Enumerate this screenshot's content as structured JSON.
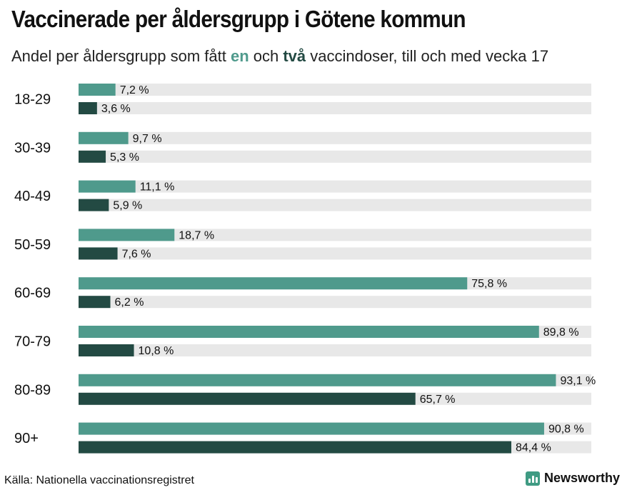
{
  "title": "Vaccinerade per åldersgrupp i Götene kommun",
  "subtitle": {
    "pre": "Andel per åldersgrupp som fått ",
    "one": "en",
    "mid": " och ",
    "two": "två",
    "post": " vaccindoser, till och med vecka 17"
  },
  "colors": {
    "one_dose": "#4f9a8c",
    "two_doses": "#234a43",
    "track": "#e8e8e8",
    "brand": "#3f9b83"
  },
  "chart_data": {
    "type": "bar",
    "orientation": "horizontal",
    "categories": [
      "18-29",
      "30-39",
      "40-49",
      "50-59",
      "60-69",
      "70-79",
      "80-89",
      "90+"
    ],
    "series": [
      {
        "name": "en",
        "values": [
          7.2,
          9.7,
          11.1,
          18.7,
          75.8,
          89.8,
          93.1,
          90.8
        ],
        "labels": [
          "7,2 %",
          "9,7 %",
          "11,1 %",
          "18,7 %",
          "75,8 %",
          "89,8 %",
          "93,1 %",
          "90,8 %"
        ]
      },
      {
        "name": "två",
        "values": [
          3.6,
          5.3,
          5.9,
          7.6,
          6.2,
          10.8,
          65.7,
          84.4
        ],
        "labels": [
          "3,6 %",
          "5,3 %",
          "5,9 %",
          "7,6 %",
          "6,2 %",
          "10,8 %",
          "65,7 %",
          "84,4 %"
        ]
      }
    ],
    "xlim": [
      0,
      100
    ],
    "grid": false
  },
  "footer": {
    "source": "Källa: Nationella vaccinationsregistret",
    "brand": "Newsworthy",
    "brand_icon": "bar-chart-logo"
  }
}
